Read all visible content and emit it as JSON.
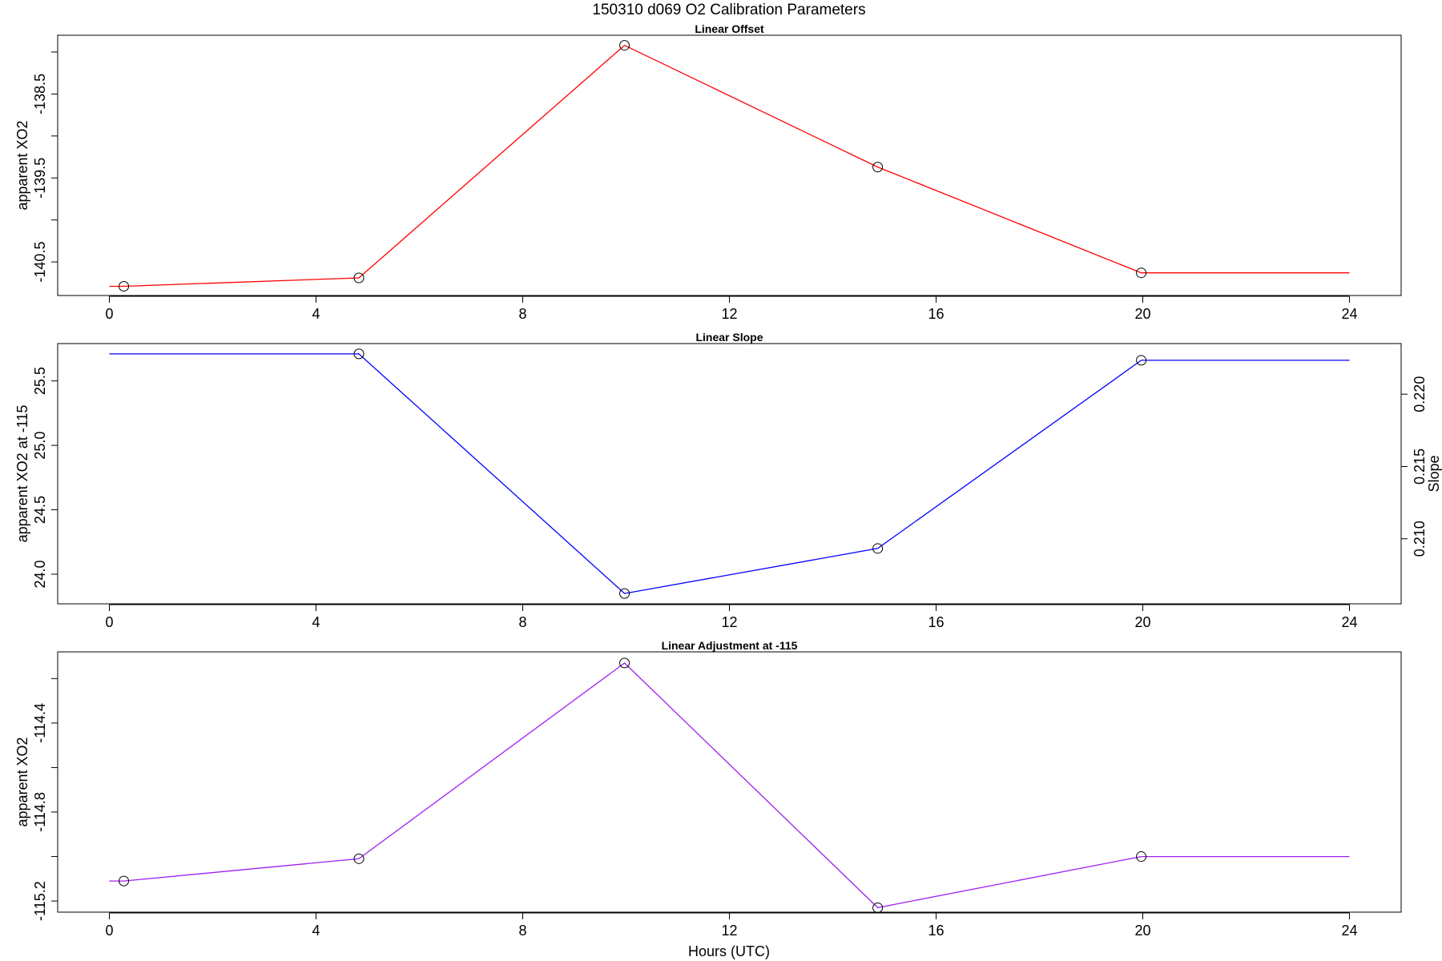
{
  "main_title": "150310   d069   O2 Calibration Parameters",
  "x_axis_label": "Hours (UTC)",
  "x_ticks": [
    "0",
    "4",
    "8",
    "12",
    "16",
    "20",
    "24"
  ],
  "chart_data": [
    {
      "type": "line",
      "title": "Linear Offset",
      "ylabel": "apparent XO2",
      "color": "#ff0000",
      "xlim": [
        -1,
        25
      ],
      "ylim": [
        -140.9,
        -137.8
      ],
      "y_ticks": [
        "-138.5",
        "-139.5",
        "-140.5"
      ],
      "y_tick_values": [
        -138.0,
        -138.5,
        -139.0,
        -139.5,
        -140.0,
        -140.5
      ],
      "labeled_y_ticks": [
        -138.5,
        -139.5,
        -140.5
      ],
      "x": [
        0.28,
        4.83,
        9.97,
        14.87,
        19.97
      ],
      "y": [
        -140.79,
        -140.69,
        -137.92,
        -139.37,
        -140.63
      ],
      "line_start": [
        0,
        -140.79
      ],
      "line_end": [
        24,
        -140.63
      ]
    },
    {
      "type": "line",
      "title": "Linear Slope",
      "ylabel": "apparent XO2 at -115",
      "right_ylabel": "Slope",
      "color": "#0000ff",
      "xlim": [
        -1,
        25
      ],
      "ylim": [
        23.77,
        25.79
      ],
      "y_ticks": [
        "24.0",
        "24.5",
        "25.0",
        "25.5"
      ],
      "y_tick_values": [
        24.0,
        24.5,
        25.0,
        25.5
      ],
      "labeled_y_ticks": [
        24.0,
        24.5,
        25.0,
        25.5
      ],
      "right_y_ticks": [
        "0.210",
        "0.215",
        "0.220"
      ],
      "right_y_tick_values": [
        0.21,
        0.215,
        0.22
      ],
      "right_ylim": [
        0.2055,
        0.2235
      ],
      "x": [
        4.83,
        9.97,
        14.87,
        19.97
      ],
      "y": [
        25.71,
        23.85,
        24.2,
        25.66
      ],
      "line_start": [
        0,
        25.71
      ],
      "line_end": [
        24,
        25.66
      ]
    },
    {
      "type": "line",
      "title": "Linear Adjustment at -115",
      "ylabel": "apparent XO2",
      "color": "#a020f0",
      "xlim": [
        -1,
        25
      ],
      "ylim": [
        -115.25,
        -114.08
      ],
      "y_ticks": [
        "-114.4",
        "-114.8",
        "-115.2"
      ],
      "y_tick_values": [
        -114.2,
        -114.4,
        -114.6,
        -114.8,
        -115.0,
        -115.2
      ],
      "labeled_y_ticks": [
        -114.4,
        -114.8,
        -115.2
      ],
      "x": [
        0.28,
        4.83,
        9.97,
        14.87,
        19.97
      ],
      "y": [
        -115.11,
        -115.01,
        -114.13,
        -115.23,
        -115.0
      ],
      "line_start": [
        0,
        -115.11
      ],
      "line_end": [
        24,
        -115.0
      ]
    }
  ]
}
